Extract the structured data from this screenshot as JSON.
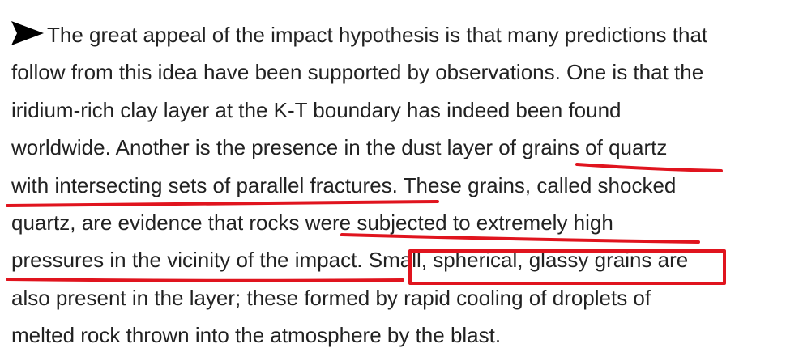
{
  "passage": {
    "bullet_icon": "right-arrow-icon",
    "lines": [
      "The great appeal of the impact hypothesis is that many predictions that",
      "follow from this idea have been supported by observations. One is that the",
      "iridium-rich clay layer at the K-T boundary has indeed been found",
      "worldwide. Another is the presence in the dust layer of grains of quartz",
      "with intersecting sets of parallel fractures. These grains, called shocked",
      "quartz, are evidence that rocks were subjected to extremely high",
      "pressures in the vicinity of the impact. Small, spherical, glassy grains are",
      "also present in the layer; these formed by rapid cooling of droplets of",
      "melted rock thrown into the atmosphere by the blast."
    ]
  },
  "annotations": {
    "color": "#e0141e",
    "underlined_phrases": [
      "grains of quartz with intersecting sets of parallel fractures",
      "were subjected to extremely high pressures in the vicinity of the impact"
    ],
    "boxed_phrase": "Small, spherical, glassy grains"
  }
}
